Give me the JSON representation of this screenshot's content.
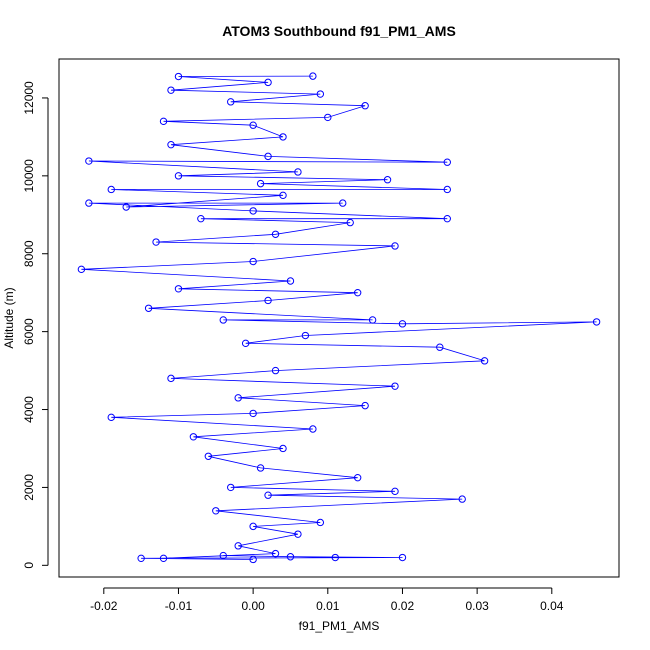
{
  "chart_data": {
    "type": "scatter",
    "title": "ATOM3 Southbound f91_PM1_AMS",
    "xlabel": "f91_PM1_AMS",
    "ylabel": "Altitude (m)",
    "xlim": [
      -0.026,
      0.049
    ],
    "ylim": [
      -300,
      13000
    ],
    "x_ticks": [
      -0.02,
      -0.01,
      0.0,
      0.01,
      0.02,
      0.03,
      0.04
    ],
    "x_tick_labels": [
      "-0.02",
      "-0.01",
      "0.00",
      "0.01",
      "0.02",
      "0.03",
      "0.04"
    ],
    "y_ticks": [
      0,
      2000,
      4000,
      6000,
      8000,
      10000,
      12000
    ],
    "y_tick_labels": [
      "0",
      "2000",
      "4000",
      "6000",
      "8000",
      "10000",
      "12000"
    ],
    "grid": false,
    "marker": "open-circle",
    "connect_points": true,
    "series": [
      {
        "color": "#0000ff",
        "points": [
          {
            "x": 0.0,
            "y": 150
          },
          {
            "x": -0.015,
            "y": 180
          },
          {
            "x": 0.02,
            "y": 200
          },
          {
            "x": 0.005,
            "y": 220
          },
          {
            "x": -0.004,
            "y": 250
          },
          {
            "x": 0.011,
            "y": 200
          },
          {
            "x": -0.012,
            "y": 180
          },
          {
            "x": 0.003,
            "y": 300
          },
          {
            "x": -0.002,
            "y": 500
          },
          {
            "x": 0.006,
            "y": 800
          },
          {
            "x": 0.0,
            "y": 1000
          },
          {
            "x": 0.009,
            "y": 1100
          },
          {
            "x": -0.005,
            "y": 1400
          },
          {
            "x": 0.028,
            "y": 1700
          },
          {
            "x": 0.002,
            "y": 1800
          },
          {
            "x": 0.019,
            "y": 1900
          },
          {
            "x": -0.003,
            "y": 2000
          },
          {
            "x": 0.014,
            "y": 2250
          },
          {
            "x": 0.001,
            "y": 2500
          },
          {
            "x": -0.006,
            "y": 2800
          },
          {
            "x": 0.004,
            "y": 3000
          },
          {
            "x": -0.008,
            "y": 3300
          },
          {
            "x": 0.008,
            "y": 3500
          },
          {
            "x": -0.019,
            "y": 3800
          },
          {
            "x": 0.0,
            "y": 3900
          },
          {
            "x": 0.015,
            "y": 4100
          },
          {
            "x": -0.002,
            "y": 4300
          },
          {
            "x": 0.019,
            "y": 4600
          },
          {
            "x": -0.011,
            "y": 4800
          },
          {
            "x": 0.003,
            "y": 5000
          },
          {
            "x": 0.031,
            "y": 5250
          },
          {
            "x": 0.025,
            "y": 5600
          },
          {
            "x": -0.001,
            "y": 5700
          },
          {
            "x": 0.007,
            "y": 5900
          },
          {
            "x": 0.046,
            "y": 6250
          },
          {
            "x": 0.02,
            "y": 6200
          },
          {
            "x": -0.004,
            "y": 6300
          },
          {
            "x": 0.016,
            "y": 6300
          },
          {
            "x": -0.014,
            "y": 6600
          },
          {
            "x": 0.002,
            "y": 6800
          },
          {
            "x": 0.014,
            "y": 7000
          },
          {
            "x": -0.01,
            "y": 7100
          },
          {
            "x": 0.005,
            "y": 7300
          },
          {
            "x": -0.023,
            "y": 7600
          },
          {
            "x": 0.0,
            "y": 7800
          },
          {
            "x": 0.019,
            "y": 8200
          },
          {
            "x": -0.013,
            "y": 8300
          },
          {
            "x": 0.003,
            "y": 8500
          },
          {
            "x": 0.013,
            "y": 8800
          },
          {
            "x": -0.007,
            "y": 8900
          },
          {
            "x": 0.026,
            "y": 8900
          },
          {
            "x": 0.0,
            "y": 9100
          },
          {
            "x": -0.022,
            "y": 9300
          },
          {
            "x": 0.012,
            "y": 9300
          },
          {
            "x": -0.017,
            "y": 9200
          },
          {
            "x": 0.004,
            "y": 9500
          },
          {
            "x": -0.019,
            "y": 9650
          },
          {
            "x": 0.026,
            "y": 9650
          },
          {
            "x": 0.001,
            "y": 9800
          },
          {
            "x": 0.018,
            "y": 9900
          },
          {
            "x": -0.01,
            "y": 10000
          },
          {
            "x": 0.006,
            "y": 10100
          },
          {
            "x": -0.022,
            "y": 10380
          },
          {
            "x": 0.026,
            "y": 10350
          },
          {
            "x": 0.002,
            "y": 10500
          },
          {
            "x": -0.011,
            "y": 10800
          },
          {
            "x": 0.004,
            "y": 11000
          },
          {
            "x": 0.0,
            "y": 11300
          },
          {
            "x": -0.012,
            "y": 11400
          },
          {
            "x": 0.01,
            "y": 11500
          },
          {
            "x": 0.015,
            "y": 11800
          },
          {
            "x": -0.003,
            "y": 11900
          },
          {
            "x": 0.009,
            "y": 12100
          },
          {
            "x": -0.011,
            "y": 12200
          },
          {
            "x": 0.002,
            "y": 12400
          },
          {
            "x": -0.01,
            "y": 12550
          },
          {
            "x": 0.008,
            "y": 12560
          }
        ]
      }
    ]
  }
}
